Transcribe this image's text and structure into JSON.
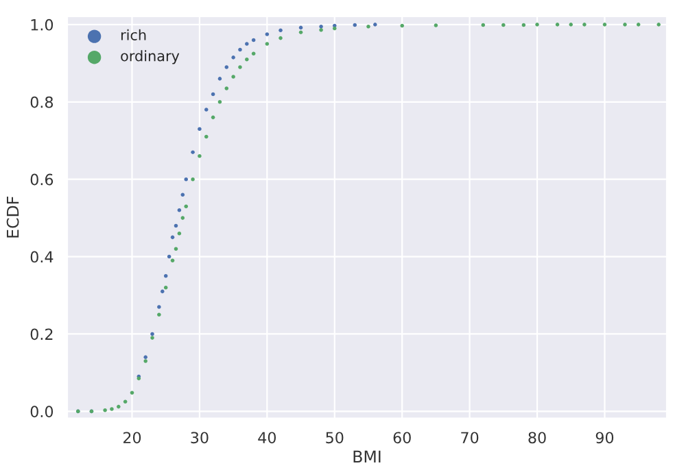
{
  "chart_data": {
    "type": "scatter",
    "xlabel": "BMI",
    "ylabel": "ECDF",
    "xlim": [
      10.4,
      99.2
    ],
    "xticks": [
      20,
      30,
      40,
      50,
      60,
      70,
      80,
      90
    ],
    "ylim": [
      -0.018,
      1.021
    ],
    "yticks": [
      {
        "value": 0,
        "label": "0.0"
      },
      {
        "value": 0.2,
        "label": "0.2"
      },
      {
        "value": 0.4,
        "label": "0.4"
      },
      {
        "value": 0.6,
        "label": "0.6"
      },
      {
        "value": 0.8,
        "label": "0.8"
      },
      {
        "value": 1,
        "label": "1.0"
      }
    ],
    "grid": true,
    "legend": "top left",
    "marker": "circle",
    "series": [
      {
        "name": "rich",
        "color": "#4c72b0",
        "x": [
          12,
          14,
          16,
          17,
          18,
          19,
          20,
          21,
          22,
          23,
          24,
          24.5,
          25,
          25.5,
          26,
          26.5,
          27,
          27.5,
          28,
          29,
          30,
          31,
          32,
          33,
          34,
          35,
          36,
          37,
          38,
          40,
          42,
          45,
          48,
          50,
          53,
          56
        ],
        "values": [
          0,
          0,
          null,
          null,
          null,
          null,
          null,
          0.09,
          0.14,
          0.2,
          0.27,
          0.31,
          0.35,
          0.4,
          0.45,
          0.48,
          0.52,
          0.56,
          0.6,
          0.67,
          0.73,
          0.78,
          0.82,
          0.86,
          0.89,
          0.915,
          0.935,
          0.95,
          0.96,
          0.975,
          0.985,
          0.992,
          0.995,
          0.997,
          0.999,
          1.0
        ]
      },
      {
        "name": "ordinary",
        "color": "#55a868",
        "x": [
          12,
          14,
          16,
          17,
          18,
          19,
          20,
          21,
          22,
          23,
          24,
          25,
          26,
          26.5,
          27,
          27.5,
          28,
          29,
          30,
          31,
          32,
          33,
          34,
          35,
          36,
          37,
          38,
          40,
          42,
          45,
          48,
          50,
          55,
          60,
          65,
          72,
          75,
          78,
          80,
          83,
          85,
          87,
          90,
          93,
          95,
          98
        ],
        "values": [
          0,
          0,
          0.003,
          0.006,
          0.012,
          0.025,
          0.048,
          0.085,
          0.13,
          0.19,
          0.25,
          0.32,
          0.39,
          0.42,
          0.46,
          0.5,
          0.53,
          0.6,
          0.66,
          0.71,
          0.76,
          0.8,
          0.835,
          0.865,
          0.89,
          0.91,
          0.925,
          0.95,
          0.965,
          0.98,
          0.986,
          0.99,
          0.995,
          0.997,
          0.998,
          0.999,
          0.999,
          0.999,
          1.0,
          1.0,
          1.0,
          1.0,
          1.0,
          1.0,
          1.0,
          1.0
        ]
      }
    ]
  }
}
